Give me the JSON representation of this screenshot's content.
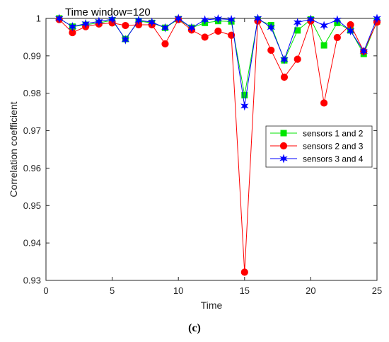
{
  "chart_data": {
    "type": "line",
    "title": "Time window=120",
    "xlabel": "Time",
    "ylabel": "Correlation coefficient",
    "xlim": [
      0,
      25
    ],
    "ylim": [
      0.93,
      1.0
    ],
    "xticks": [
      "0",
      "5",
      "10",
      "15",
      "20",
      "25"
    ],
    "yticks": [
      "0.93",
      "0.94",
      "0.95",
      "0.96",
      "0.97",
      "0.98",
      "0.99",
      "1"
    ],
    "grid": false,
    "legend_position": "center-right",
    "x": [
      1,
      2,
      3,
      4,
      5,
      6,
      7,
      8,
      9,
      10,
      11,
      12,
      13,
      14,
      15,
      16,
      17,
      18,
      19,
      20,
      21,
      22,
      23,
      24,
      25
    ],
    "series": [
      {
        "name": "sensors 1 and 2",
        "color": "#00e600",
        "marker": "square",
        "values": [
          1.0,
          0.9978,
          0.9983,
          0.9988,
          0.9995,
          0.9945,
          0.9993,
          0.9988,
          0.9975,
          0.9998,
          0.9975,
          0.9988,
          0.9993,
          0.9992,
          0.9795,
          0.9997,
          0.9982,
          0.9888,
          0.9968,
          0.9997,
          0.9928,
          0.9988,
          0.9968,
          0.9905,
          0.9992
        ]
      },
      {
        "name": "sensors 2 and 3",
        "color": "#ff0000",
        "marker": "circle",
        "values": [
          0.9997,
          0.9962,
          0.9978,
          0.9985,
          0.9988,
          0.9981,
          0.9983,
          0.9983,
          0.9932,
          0.9997,
          0.9969,
          0.995,
          0.9966,
          0.9955,
          0.9322,
          0.9993,
          0.9915,
          0.9843,
          0.9891,
          0.9993,
          0.9774,
          0.9949,
          0.9983,
          0.9912,
          0.999
        ]
      },
      {
        "name": "sensors 3 and 4",
        "color": "#0000ff",
        "marker": "star",
        "values": [
          1.0,
          0.9978,
          0.9986,
          0.9992,
          0.9998,
          0.9943,
          0.9995,
          0.999,
          0.9975,
          1.0,
          0.9975,
          0.9996,
          0.9999,
          0.9997,
          0.9766,
          1.0,
          0.9976,
          0.989,
          0.9989,
          0.9998,
          0.9981,
          0.9996,
          0.9967,
          0.9912,
          1.0
        ]
      }
    ]
  },
  "caption": "(c)"
}
